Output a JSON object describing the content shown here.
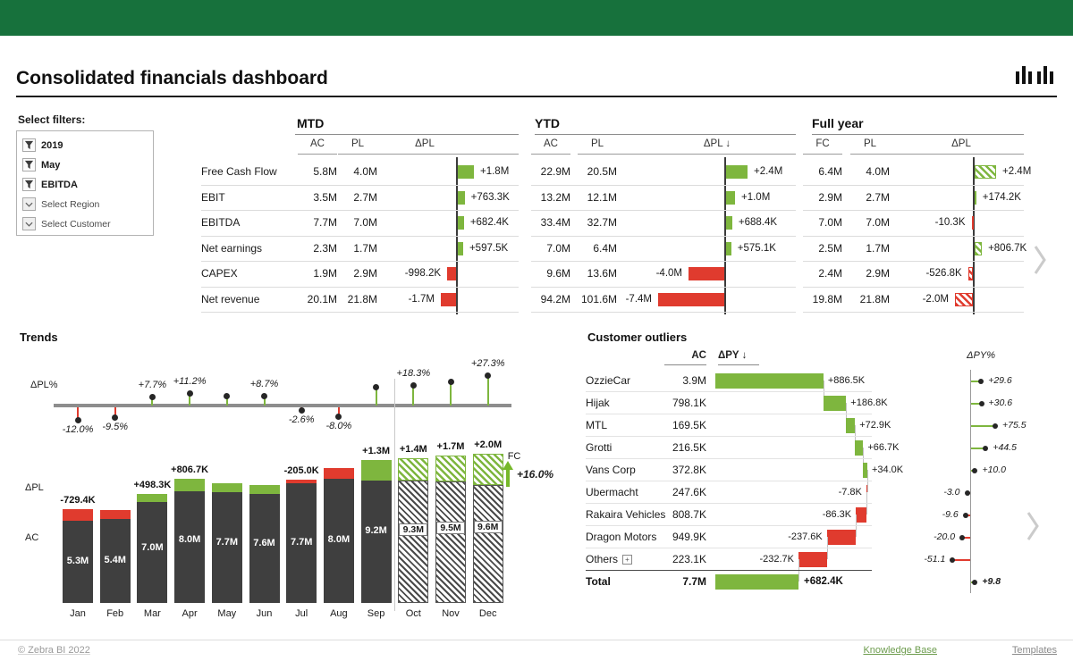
{
  "app": {
    "accent_green": "#17713C",
    "positive_color": "#7EB63E",
    "negative_color": "#E03B2E",
    "bar_dark_color": "#3F3F3F"
  },
  "header": {
    "title": "Consolidated financials dashboard",
    "logo": "zebra-bi-logo"
  },
  "filters": {
    "label": "Select filters:",
    "items": [
      {
        "label": "2019",
        "icon": "filter-funnel-icon"
      },
      {
        "label": "May",
        "icon": "filter-funnel-icon"
      },
      {
        "label": "EBITDA",
        "icon": "filter-funnel-icon"
      },
      {
        "label": "Select Region",
        "icon": "chevron-down-icon"
      },
      {
        "label": "Select Customer",
        "icon": "chevron-down-icon"
      }
    ]
  },
  "fin_table": {
    "groups": [
      {
        "name": "MTD",
        "columns": [
          "AC",
          "PL",
          "ΔPL"
        ]
      },
      {
        "name": "YTD",
        "columns": [
          "AC",
          "PL",
          "ΔPL ↓"
        ]
      },
      {
        "name": "Full year",
        "columns": [
          "FC",
          "PL",
          "ΔPL"
        ]
      }
    ],
    "rows": [
      {
        "label": "Free Cash Flow",
        "mtd": {
          "ac": "5.8M",
          "pl": "4.0M",
          "delta": 1.8,
          "delta_label": "+1.8M"
        },
        "ytd": {
          "ac": "22.9M",
          "pl": "20.5M",
          "delta": 2.4,
          "delta_label": "+2.4M"
        },
        "fy": {
          "ac": "6.4M",
          "pl": "4.0M",
          "delta": 2.4,
          "delta_label": "+2.4M"
        }
      },
      {
        "label": "EBIT",
        "mtd": {
          "ac": "3.5M",
          "pl": "2.7M",
          "delta": 0.7633,
          "delta_label": "+763.3K"
        },
        "ytd": {
          "ac": "13.2M",
          "pl": "12.1M",
          "delta": 1.0,
          "delta_label": "+1.0M"
        },
        "fy": {
          "ac": "2.9M",
          "pl": "2.7M",
          "delta": 0.1742,
          "delta_label": "+174.2K"
        }
      },
      {
        "label": "EBITDA",
        "mtd": {
          "ac": "7.7M",
          "pl": "7.0M",
          "delta": 0.6824,
          "delta_label": "+682.4K"
        },
        "ytd": {
          "ac": "33.4M",
          "pl": "32.7M",
          "delta": 0.6884,
          "delta_label": "+688.4K"
        },
        "fy": {
          "ac": "7.0M",
          "pl": "7.0M",
          "delta": -0.0103,
          "delta_label": "-10.3K"
        }
      },
      {
        "label": "Net earnings",
        "mtd": {
          "ac": "2.3M",
          "pl": "1.7M",
          "delta": 0.5975,
          "delta_label": "+597.5K"
        },
        "ytd": {
          "ac": "7.0M",
          "pl": "6.4M",
          "delta": 0.5751,
          "delta_label": "+575.1K"
        },
        "fy": {
          "ac": "2.5M",
          "pl": "1.7M",
          "delta": 0.8067,
          "delta_label": "+806.7K"
        }
      },
      {
        "label": "CAPEX",
        "mtd": {
          "ac": "1.9M",
          "pl": "2.9M",
          "delta": -0.9982,
          "delta_label": "-998.2K"
        },
        "ytd": {
          "ac": "9.6M",
          "pl": "13.6M",
          "delta": -4.0,
          "delta_label": "-4.0M"
        },
        "fy": {
          "ac": "2.4M",
          "pl": "2.9M",
          "delta": -0.5268,
          "delta_label": "-526.8K"
        }
      },
      {
        "label": "Net revenue",
        "mtd": {
          "ac": "20.1M",
          "pl": "21.8M",
          "delta": -1.7,
          "delta_label": "-1.7M"
        },
        "ytd": {
          "ac": "94.2M",
          "pl": "101.6M",
          "delta": -7.4,
          "delta_label": "-7.4M"
        },
        "fy": {
          "ac": "19.8M",
          "pl": "21.8M",
          "delta": -2.0,
          "delta_label": "-2.0M"
        }
      }
    ]
  },
  "chart_data": [
    {
      "name": "trends",
      "type": "bar",
      "title": "Trends",
      "categories": [
        "Jan",
        "Feb",
        "Mar",
        "Apr",
        "May",
        "Jun",
        "Jul",
        "Aug",
        "Sep",
        "Oct",
        "Nov",
        "Dec"
      ],
      "series": [
        {
          "name": "AC",
          "values": [
            5.3,
            5.4,
            7.0,
            8.0,
            7.7,
            7.6,
            7.7,
            8.0,
            9.2,
            9.3,
            9.5,
            9.6
          ]
        },
        {
          "name": "ΔPL",
          "values": [
            -0.7294,
            -0.57,
            0.4983,
            0.8067,
            0.57,
            0.61,
            -0.205,
            -0.7,
            1.3,
            1.4,
            1.7,
            2.0
          ]
        },
        {
          "name": "ΔPL%",
          "values": [
            -12.0,
            -9.5,
            7.7,
            11.2,
            8.0,
            8.7,
            -2.6,
            -8.0,
            16.5,
            18.3,
            21.8,
            27.3
          ]
        }
      ],
      "ac_labels": [
        "5.3M",
        "5.4M",
        "7.0M",
        "8.0M",
        "7.7M",
        "7.6M",
        "7.7M",
        "8.0M",
        "9.2M",
        "9.3M",
        "9.5M",
        "9.6M"
      ],
      "variance_labels": [
        "-729.4K",
        "",
        "+498.3K",
        "+806.7K",
        "",
        "",
        "-205.0K",
        "",
        "+1.3M",
        "+1.4M",
        "+1.7M",
        "+2.0M"
      ],
      "pct_labels": [
        "-12.0%",
        "-9.5%",
        "+7.7%",
        "+11.2%",
        "",
        "+8.7%",
        "-2.6%",
        "-8.0%",
        "",
        "+18.3%",
        "",
        "+27.3%"
      ],
      "forecast_from_index": 9,
      "axis_labels": {
        "pct": "ΔPL%",
        "delta": "ΔPL",
        "ac": "AC"
      },
      "fc_marker": "FC",
      "total_growth_label": "+16.0%"
    },
    {
      "name": "customer_outliers",
      "type": "waterfall",
      "title": "Customer outliers",
      "columns": {
        "ac": "AC",
        "dpy": "ΔPY ↓",
        "dpy_pct": "ΔPY%"
      },
      "rows": [
        {
          "name": "OzzieCar",
          "ac": "3.9M",
          "dpy": 886.5,
          "dpy_label": "+886.5K",
          "pct": 29.6,
          "pct_label": "+29.6"
        },
        {
          "name": "Hijak",
          "ac": "798.1K",
          "dpy": 186.8,
          "dpy_label": "+186.8K",
          "pct": 30.6,
          "pct_label": "+30.6"
        },
        {
          "name": "MTL",
          "ac": "169.5K",
          "dpy": 72.9,
          "dpy_label": "+72.9K",
          "pct": 75.5,
          "pct_label": "+75.5"
        },
        {
          "name": "Grotti",
          "ac": "216.5K",
          "dpy": 66.7,
          "dpy_label": "+66.7K",
          "pct": 44.5,
          "pct_label": "+44.5"
        },
        {
          "name": "Vans Corp",
          "ac": "372.8K",
          "dpy": 34.0,
          "dpy_label": "+34.0K",
          "pct": 10.0,
          "pct_label": "+10.0"
        },
        {
          "name": "Ubermacht",
          "ac": "247.6K",
          "dpy": -7.8,
          "dpy_label": "-7.8K",
          "pct": -3.0,
          "pct_label": "-3.0"
        },
        {
          "name": "Rakaira Vehicles",
          "ac": "808.7K",
          "dpy": -86.3,
          "dpy_label": "-86.3K",
          "pct": -9.6,
          "pct_label": "-9.6"
        },
        {
          "name": "Dragon Motors",
          "ac": "949.9K",
          "dpy": -237.6,
          "dpy_label": "-237.6K",
          "pct": -20.0,
          "pct_label": "-20.0"
        },
        {
          "name": "Others",
          "ac": "223.1K",
          "dpy": -232.7,
          "dpy_label": "-232.7K",
          "pct": -51.1,
          "pct_label": "-51.1",
          "expandable": true
        }
      ],
      "total": {
        "name": "Total",
        "ac": "7.7M",
        "dpy": 682.4,
        "dpy_label": "+682.4K",
        "pct": 9.8,
        "pct_label": "+9.8"
      }
    }
  ],
  "footer": {
    "copyright": "© Zebra BI 2022",
    "links": [
      {
        "label": "Knowledge Base"
      },
      {
        "label": "Templates"
      }
    ]
  }
}
